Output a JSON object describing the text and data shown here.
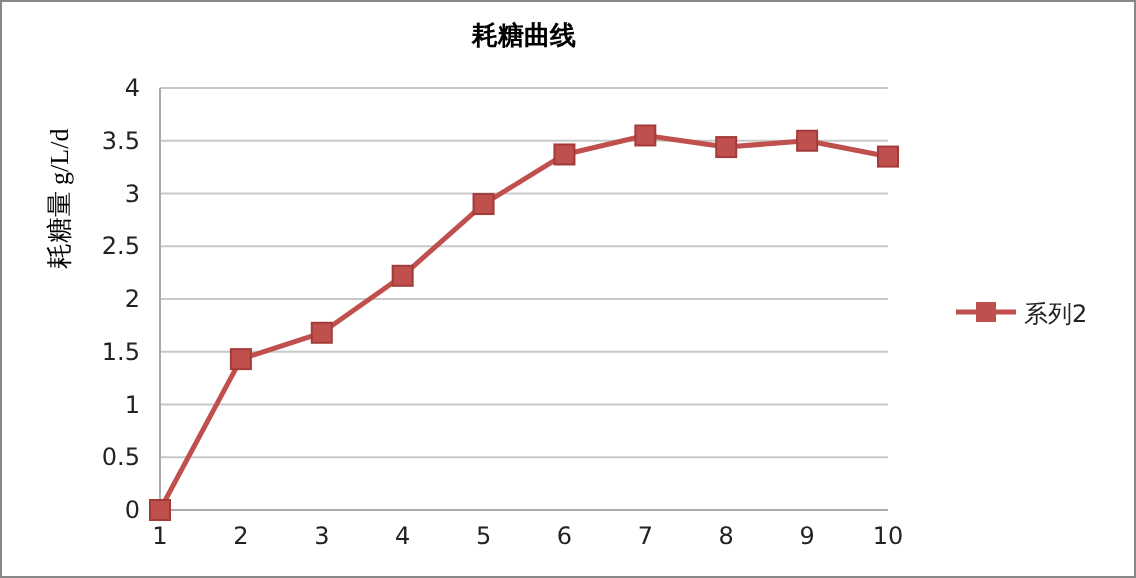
{
  "chart_data": {
    "type": "line",
    "title": "耗糖曲线",
    "ylabel": "耗糖量 g/L/d",
    "categories": [
      "1",
      "2",
      "3",
      "4",
      "5",
      "6",
      "7",
      "8",
      "9",
      "10"
    ],
    "series": [
      {
        "name": "系列2",
        "color": "#c0504d",
        "values": [
          0,
          1.43,
          1.68,
          2.22,
          2.9,
          3.37,
          3.55,
          3.44,
          3.5,
          3.35
        ]
      }
    ],
    "ylim": [
      0,
      4
    ],
    "yticks": [
      0,
      0.5,
      1,
      1.5,
      2,
      2.5,
      3,
      3.5,
      4
    ],
    "grid": "y",
    "legend": "right",
    "marker": "square",
    "line_style": "solid"
  }
}
